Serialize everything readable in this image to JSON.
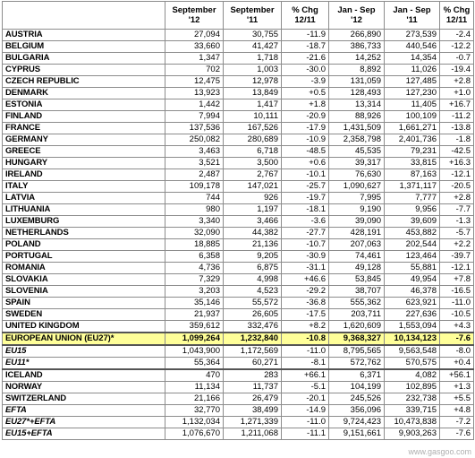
{
  "headers": [
    "",
    "September\n'12",
    "September\n'11",
    "% Chg\n12/11",
    "Jan - Sep\n'12",
    "Jan - Sep\n'11",
    "% Chg\n12/11"
  ],
  "rows": [
    {
      "name": "AUSTRIA",
      "v": [
        "27,094",
        "30,755",
        "-11.9",
        "266,890",
        "273,539",
        "-2.4"
      ]
    },
    {
      "name": "BELGIUM",
      "v": [
        "33,660",
        "41,427",
        "-18.7",
        "386,733",
        "440,546",
        "-12.2"
      ]
    },
    {
      "name": "BULGARIA",
      "v": [
        "1,347",
        "1,718",
        "-21.6",
        "14,252",
        "14,354",
        "-0.7"
      ]
    },
    {
      "name": "CYPRUS",
      "v": [
        "702",
        "1,003",
        "-30.0",
        "8,892",
        "11,026",
        "-19.4"
      ]
    },
    {
      "name": "CZECH REPUBLIC",
      "v": [
        "12,475",
        "12,978",
        "-3.9",
        "131,059",
        "127,485",
        "+2.8"
      ]
    },
    {
      "name": "DENMARK",
      "v": [
        "13,923",
        "13,849",
        "+0.5",
        "128,493",
        "127,230",
        "+1.0"
      ]
    },
    {
      "name": "ESTONIA",
      "v": [
        "1,442",
        "1,417",
        "+1.8",
        "13,314",
        "11,405",
        "+16.7"
      ]
    },
    {
      "name": "FINLAND",
      "v": [
        "7,994",
        "10,111",
        "-20.9",
        "88,926",
        "100,109",
        "-11.2"
      ]
    },
    {
      "name": "FRANCE",
      "v": [
        "137,536",
        "167,526",
        "-17.9",
        "1,431,509",
        "1,661,271",
        "-13.8"
      ]
    },
    {
      "name": "GERMANY",
      "v": [
        "250,082",
        "280,689",
        "-10.9",
        "2,358,798",
        "2,401,736",
        "-1.8"
      ]
    },
    {
      "name": "GREECE",
      "v": [
        "3,463",
        "6,718",
        "-48.5",
        "45,535",
        "79,231",
        "-42.5"
      ]
    },
    {
      "name": "HUNGARY",
      "v": [
        "3,521",
        "3,500",
        "+0.6",
        "39,317",
        "33,815",
        "+16.3"
      ]
    },
    {
      "name": "IRELAND",
      "v": [
        "2,487",
        "2,767",
        "-10.1",
        "76,630",
        "87,163",
        "-12.1"
      ]
    },
    {
      "name": "ITALY",
      "v": [
        "109,178",
        "147,021",
        "-25.7",
        "1,090,627",
        "1,371,117",
        "-20.5"
      ]
    },
    {
      "name": "LATVIA",
      "v": [
        "744",
        "926",
        "-19.7",
        "7,995",
        "7,777",
        "+2.8"
      ]
    },
    {
      "name": "LITHUANIA",
      "v": [
        "980",
        "1,197",
        "-18.1",
        "9,190",
        "9,956",
        "-7.7"
      ]
    },
    {
      "name": "LUXEMBURG",
      "v": [
        "3,340",
        "3,466",
        "-3.6",
        "39,090",
        "39,609",
        "-1.3"
      ]
    },
    {
      "name": "NETHERLANDS",
      "v": [
        "32,090",
        "44,382",
        "-27.7",
        "428,191",
        "453,882",
        "-5.7"
      ]
    },
    {
      "name": "POLAND",
      "v": [
        "18,885",
        "21,136",
        "-10.7",
        "207,063",
        "202,544",
        "+2.2"
      ]
    },
    {
      "name": "PORTUGAL",
      "v": [
        "6,358",
        "9,205",
        "-30.9",
        "74,461",
        "123,464",
        "-39.7"
      ]
    },
    {
      "name": "ROMANIA",
      "v": [
        "4,736",
        "6,875",
        "-31.1",
        "49,128",
        "55,881",
        "-12.1"
      ]
    },
    {
      "name": "SLOVAKIA",
      "v": [
        "7,329",
        "4,998",
        "+46.6",
        "53,845",
        "49,954",
        "+7.8"
      ]
    },
    {
      "name": "SLOVENIA",
      "v": [
        "3,203",
        "4,523",
        "-29.2",
        "38,707",
        "46,378",
        "-16.5"
      ]
    },
    {
      "name": "SPAIN",
      "v": [
        "35,146",
        "55,572",
        "-36.8",
        "555,362",
        "623,921",
        "-11.0"
      ]
    },
    {
      "name": "SWEDEN",
      "v": [
        "21,937",
        "26,605",
        "-17.5",
        "203,711",
        "227,636",
        "-10.5"
      ]
    },
    {
      "name": "UNITED KINGDOM",
      "v": [
        "359,612",
        "332,476",
        "+8.2",
        "1,620,609",
        "1,553,094",
        "+4.3"
      ]
    }
  ],
  "eu27": {
    "name": "EUROPEAN UNION (EU27)*",
    "v": [
      "1,099,264",
      "1,232,840",
      "-10.8",
      "9,368,327",
      "10,134,123",
      "-7.6"
    ]
  },
  "eu15": {
    "name": "EU15",
    "v": [
      "1,043,900",
      "1,172,569",
      "-11.0",
      "8,795,565",
      "9,563,548",
      "-8.0"
    ]
  },
  "eu11": {
    "name": "EU11*",
    "v": [
      "55,364",
      "60,271",
      "-8.1",
      "572,762",
      "570,575",
      "+0.4"
    ]
  },
  "efta_rows": [
    {
      "name": "ICELAND",
      "v": [
        "470",
        "283",
        "+66.1",
        "6,371",
        "4,082",
        "+56.1"
      ]
    },
    {
      "name": "NORWAY",
      "v": [
        "11,134",
        "11,737",
        "-5.1",
        "104,199",
        "102,895",
        "+1.3"
      ]
    },
    {
      "name": "SWITZERLAND",
      "v": [
        "21,166",
        "26,479",
        "-20.1",
        "245,526",
        "232,738",
        "+5.5"
      ]
    }
  ],
  "efta": {
    "name": "EFTA",
    "v": [
      "32,770",
      "38,499",
      "-14.9",
      "356,096",
      "339,715",
      "+4.8"
    ]
  },
  "eu27_efta": {
    "name": "EU27*+EFTA",
    "v": [
      "1,132,034",
      "1,271,339",
      "-11.0",
      "9,724,423",
      "10,473,838",
      "-7.2"
    ]
  },
  "eu15_efta": {
    "name": "EU15+EFTA",
    "v": [
      "1,076,670",
      "1,211,068",
      "-11.1",
      "9,151,661",
      "9,903,263",
      "-7.6"
    ]
  },
  "watermark": "www.gasgoo.com",
  "colors": {
    "highlight": "#ffff99",
    "border": "#8c8c8c"
  }
}
